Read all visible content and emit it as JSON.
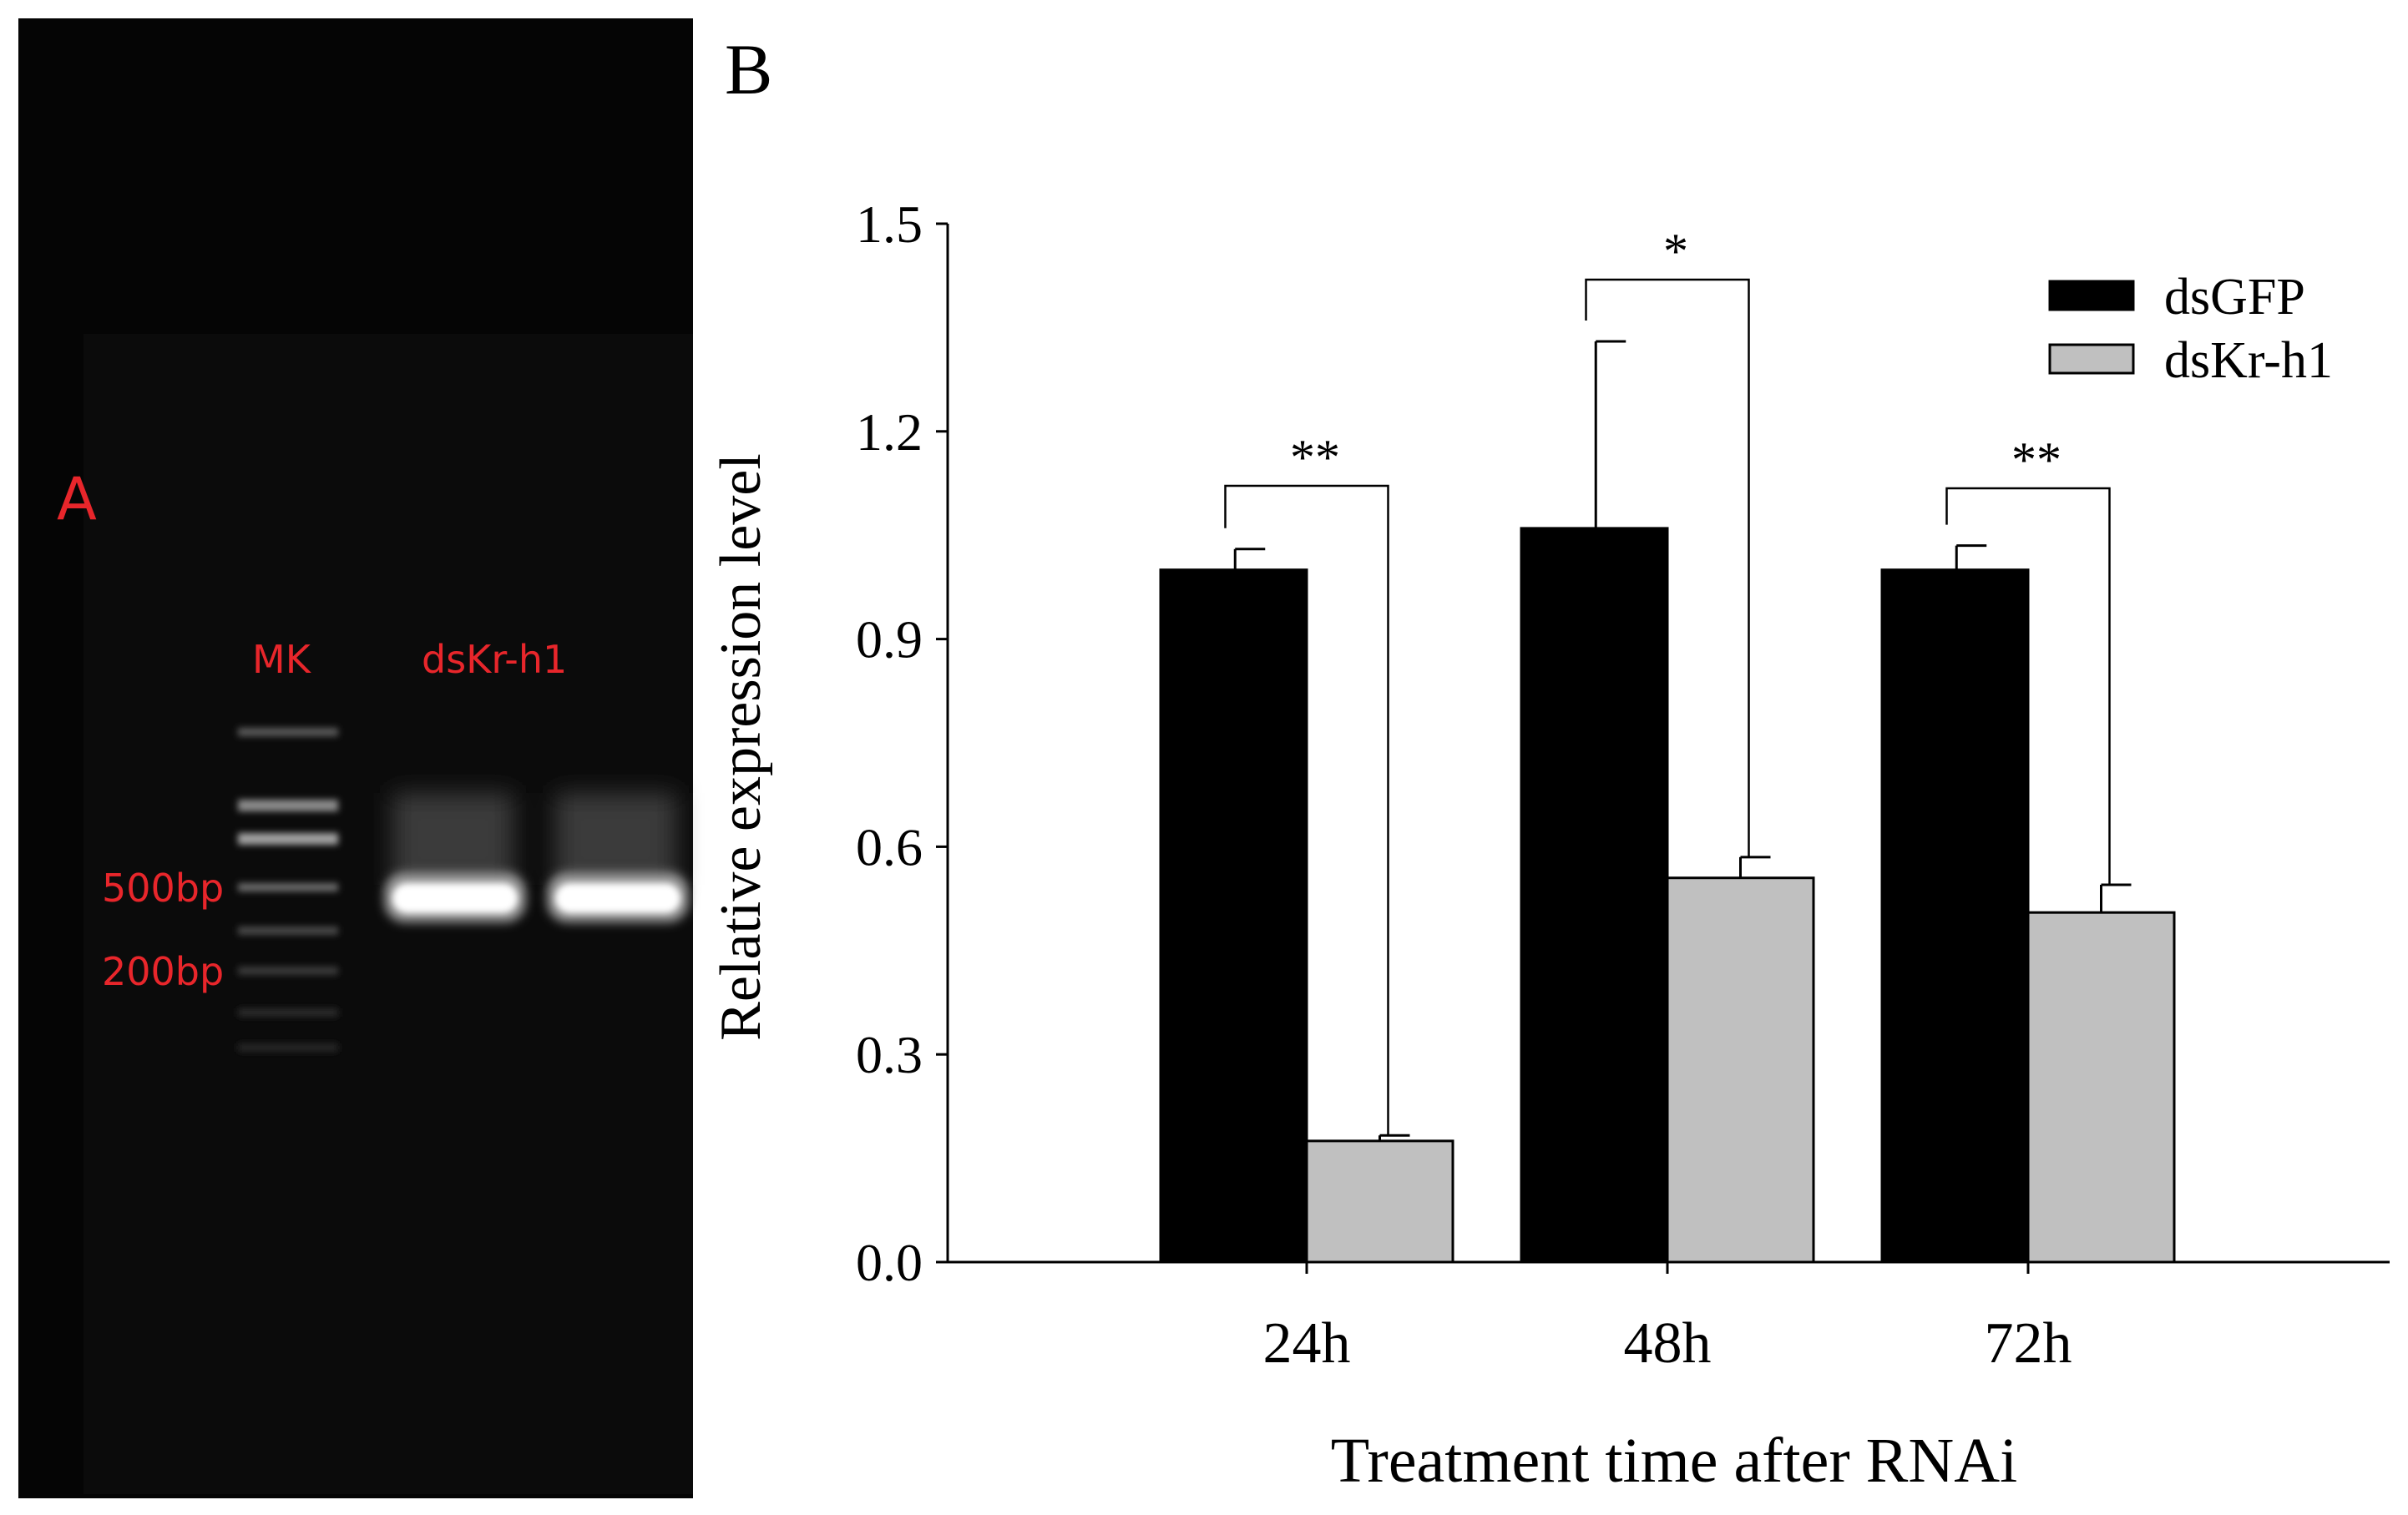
{
  "panel_a": {
    "panel_letter": "A",
    "lane_labels": [
      "MK",
      "dsKr-h1"
    ],
    "size_labels": [
      "500bp",
      "200bp"
    ],
    "label_color": "#e8262b"
  },
  "panel_b": {
    "panel_letter": "B"
  },
  "chart_data": {
    "type": "bar",
    "title": "",
    "xlabel": "Treatment time after RNAi",
    "ylabel": "Relative expression level",
    "categories": [
      "24h",
      "48h",
      "72h"
    ],
    "ylim": [
      0,
      1.5
    ],
    "yticks": [
      "0.0",
      "0.3",
      "0.6",
      "0.9",
      "1.2",
      "1.5"
    ],
    "grid": false,
    "legend_position": "top-right",
    "series": [
      {
        "name": "dsGFP",
        "color": "#000000",
        "values": [
          1.0,
          1.06,
          1.0
        ],
        "errors": [
          0.03,
          0.27,
          0.035
        ]
      },
      {
        "name": "dsKr-h1",
        "color": "#c0c0c0",
        "values": [
          0.175,
          0.555,
          0.505
        ],
        "errors": [
          0.008,
          0.03,
          0.04
        ]
      }
    ],
    "significance": [
      "**",
      "*",
      "**"
    ]
  }
}
